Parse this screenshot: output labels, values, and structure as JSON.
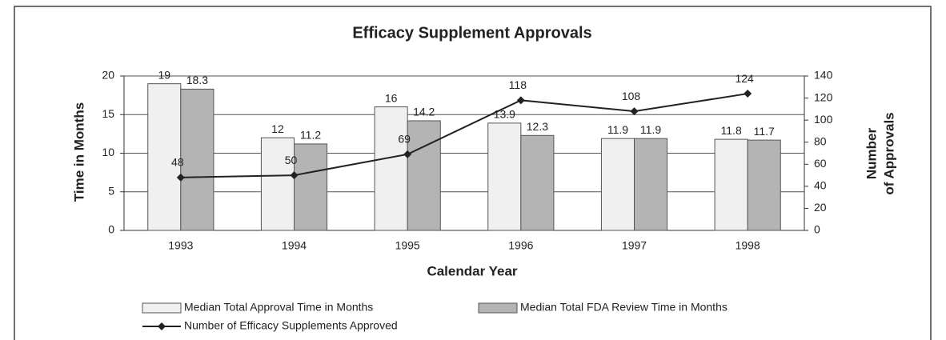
{
  "chart_data": {
    "type": "bar+line",
    "title": "Efficacy Supplement Approvals",
    "x_label": "Calendar Year",
    "y_label": "Time in Months",
    "y2_label": [
      "Number",
      "of Approvals"
    ],
    "categories": [
      "1993",
      "1994",
      "1995",
      "1996",
      "1997",
      "1998"
    ],
    "series": [
      {
        "name": "Median Total Approval Time in Months",
        "type": "bar",
        "color": "#f0f0f0",
        "values": [
          19,
          12,
          16,
          13.9,
          11.9,
          11.8
        ]
      },
      {
        "name": "Median Total FDA Review Time in Months",
        "type": "bar",
        "color": "#b4b4b4",
        "values": [
          18.3,
          11.2,
          14.2,
          12.3,
          11.9,
          11.7
        ]
      },
      {
        "name": "Number of Efficacy Supplements Approved",
        "type": "line",
        "axis": "y2",
        "color": "#222222",
        "values": [
          48,
          50,
          69,
          118,
          108,
          124
        ]
      }
    ],
    "ylim": [
      0,
      20
    ],
    "yticks": [
      0,
      5,
      10,
      15,
      20
    ],
    "y2lim": [
      0,
      140
    ],
    "y2ticks": [
      0,
      20,
      40,
      60,
      80,
      100,
      120,
      140
    ],
    "grid": true
  }
}
